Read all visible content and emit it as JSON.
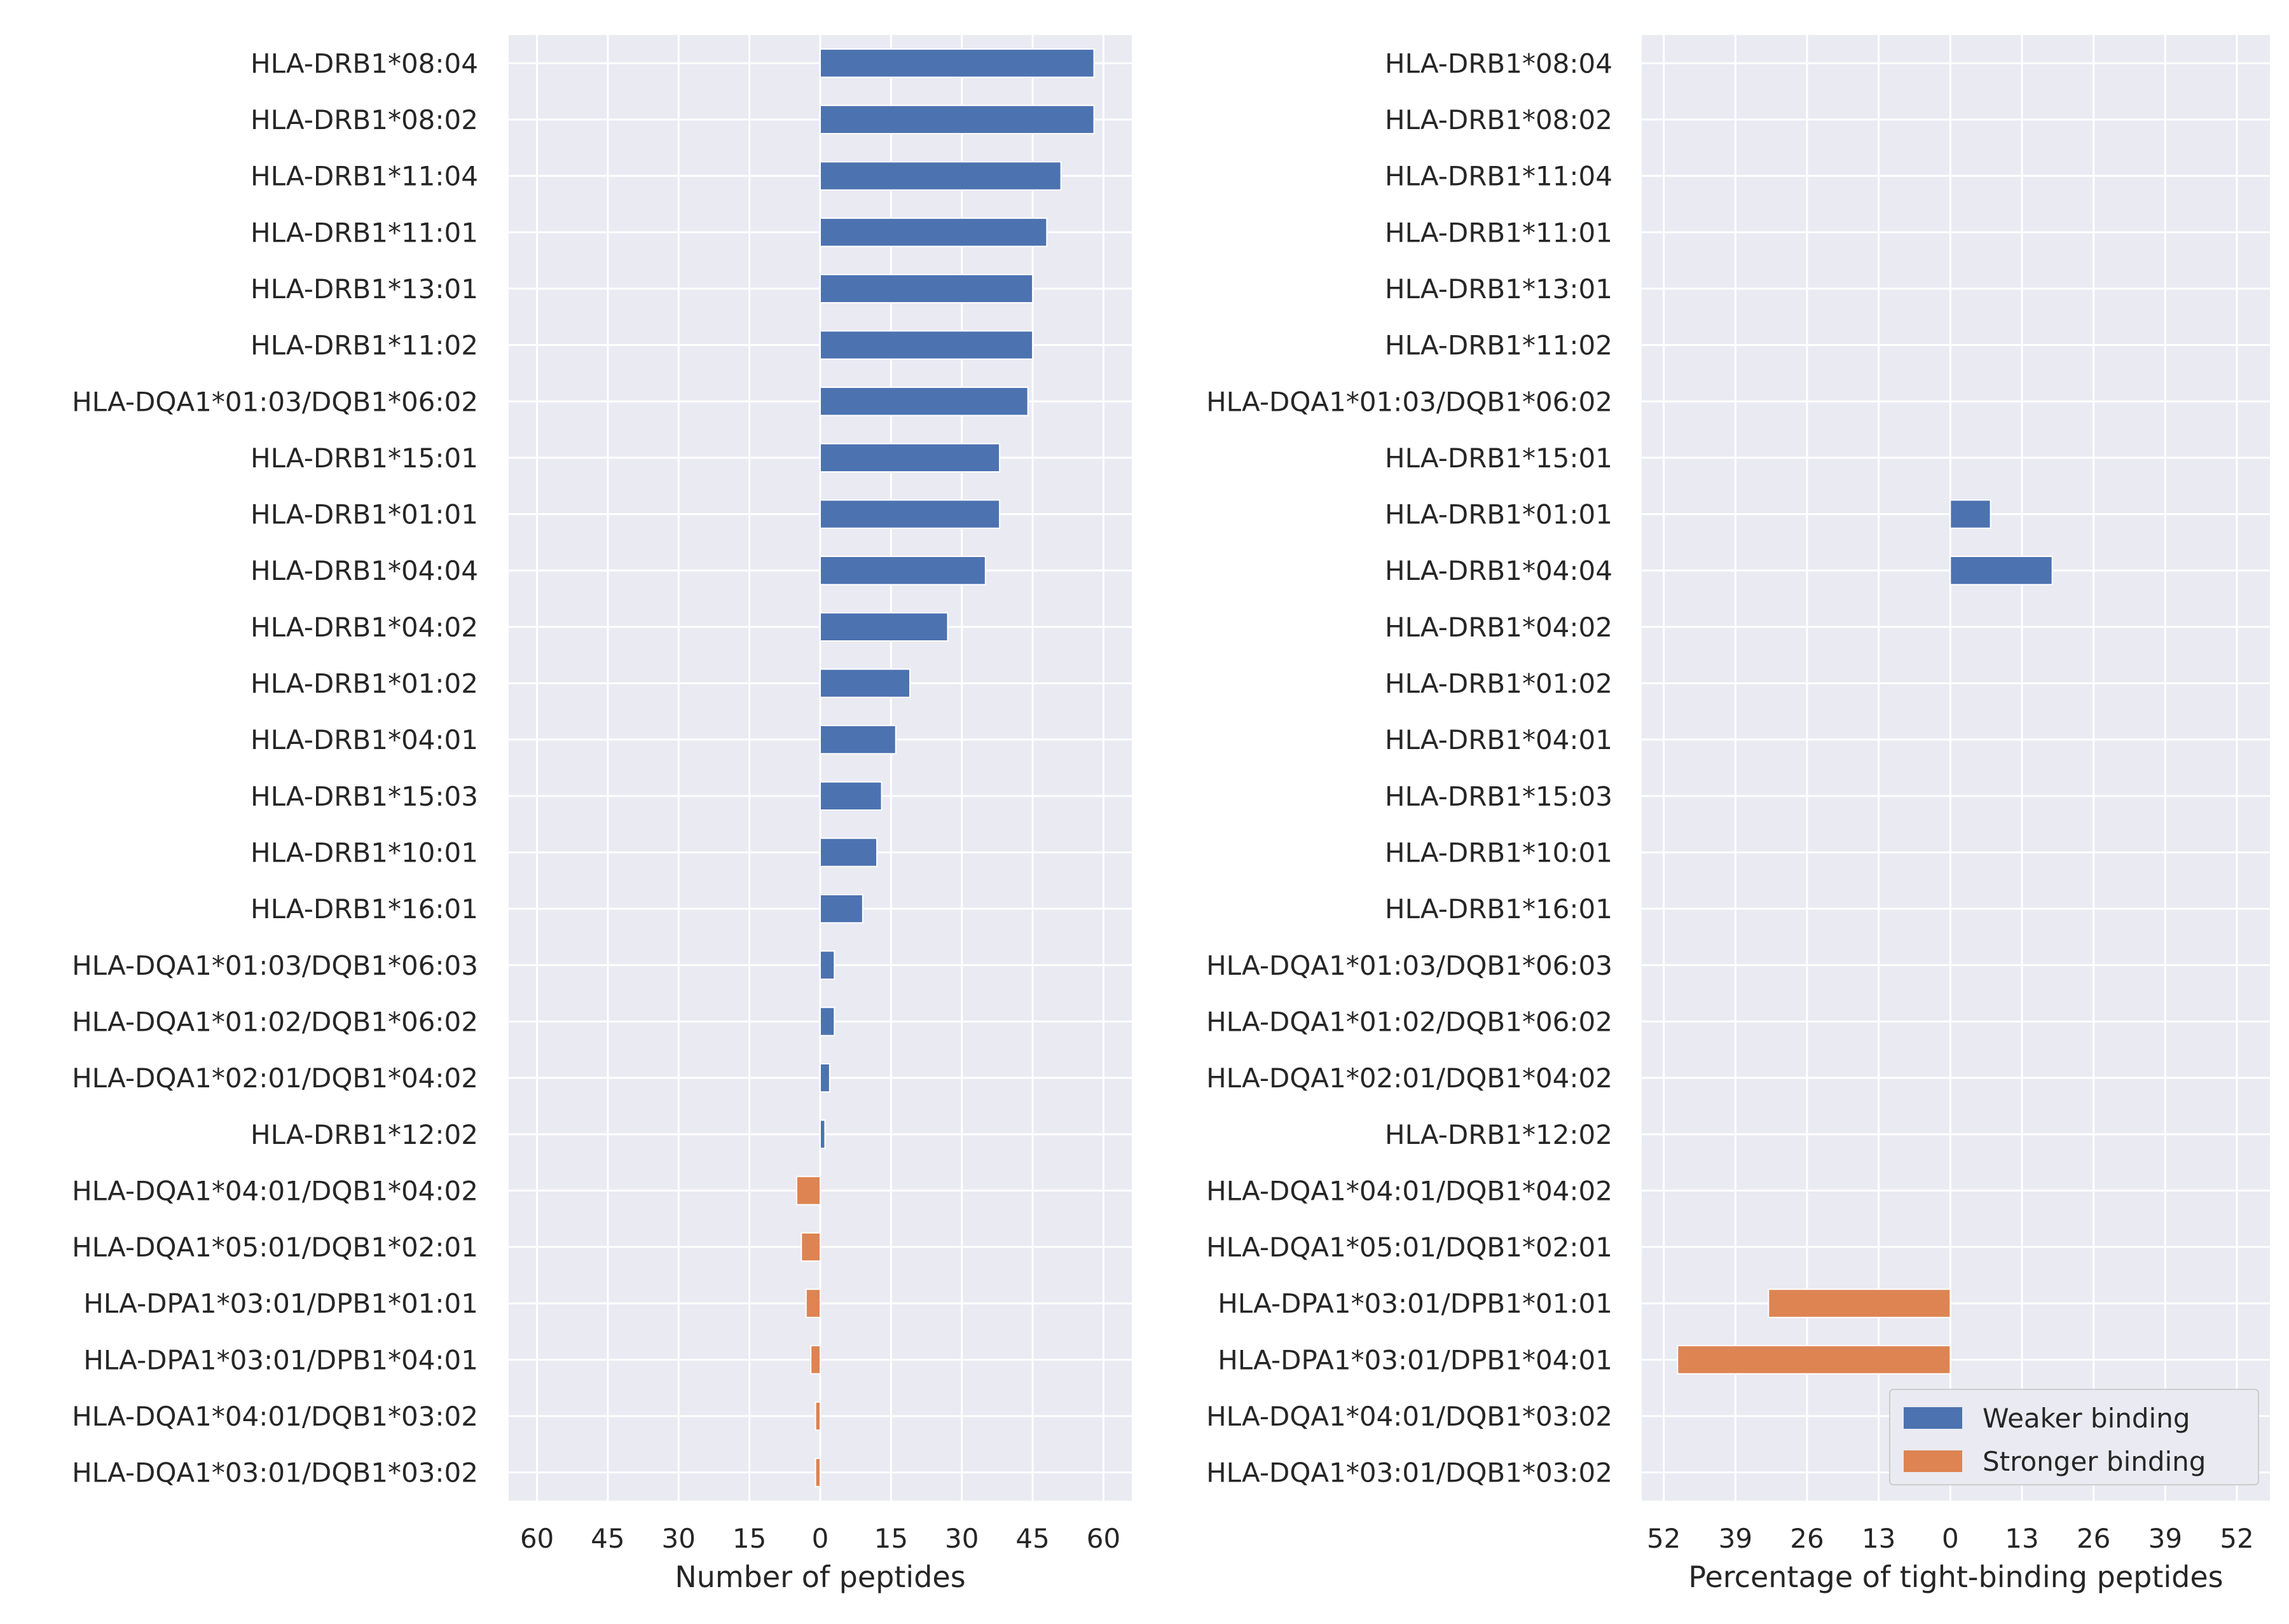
{
  "chart_data": [
    {
      "type": "bar",
      "orientation": "horizontal",
      "xlabel": "Number of peptides",
      "ylabel": "",
      "title": "",
      "xlim": [
        -66,
        66
      ],
      "xticks": [
        -60,
        -45,
        -30,
        -15,
        0,
        15,
        30,
        45,
        60
      ],
      "xtick_labels": [
        "60",
        "45",
        "30",
        "15",
        "0",
        "15",
        "30",
        "45",
        "60"
      ],
      "grid": true,
      "categories": [
        "HLA-DRB1*08:04",
        "HLA-DRB1*08:02",
        "HLA-DRB1*11:04",
        "HLA-DRB1*11:01",
        "HLA-DRB1*13:01",
        "HLA-DRB1*11:02",
        "HLA-DQA1*01:03/DQB1*06:02",
        "HLA-DRB1*15:01",
        "HLA-DRB1*01:01",
        "HLA-DRB1*04:04",
        "HLA-DRB1*04:02",
        "HLA-DRB1*01:02",
        "HLA-DRB1*04:01",
        "HLA-DRB1*15:03",
        "HLA-DRB1*10:01",
        "HLA-DRB1*16:01",
        "HLA-DQA1*01:03/DQB1*06:03",
        "HLA-DQA1*01:02/DQB1*06:02",
        "HLA-DQA1*02:01/DQB1*04:02",
        "HLA-DRB1*12:02",
        "HLA-DQA1*04:01/DQB1*04:02",
        "HLA-DQA1*05:01/DQB1*02:01",
        "HLA-DPA1*03:01/DPB1*01:01",
        "HLA-DPA1*03:01/DPB1*04:01",
        "HLA-DQA1*04:01/DQB1*03:02",
        "HLA-DQA1*03:01/DQB1*03:02"
      ],
      "series": [
        {
          "color": "#4c72b0",
          "values": [
            58,
            58,
            51,
            48,
            45,
            45,
            44,
            38,
            38,
            35,
            27,
            19,
            16,
            13,
            12,
            9,
            3,
            3,
            2,
            1,
            0,
            0,
            0,
            0,
            0,
            0
          ]
        },
        {
          "color": "#dd8452",
          "values": [
            0,
            0,
            0,
            0,
            0,
            0,
            0,
            0,
            0,
            0,
            0,
            0,
            0,
            0,
            0,
            0,
            0,
            0,
            0,
            0,
            -5,
            -4,
            -3,
            -2,
            -1,
            -1
          ]
        }
      ]
    },
    {
      "type": "bar",
      "orientation": "horizontal",
      "xlabel": "Percentage of tight-binding peptides",
      "ylabel": "",
      "title": "",
      "xlim": [
        -56,
        58
      ],
      "xticks": [
        -52,
        -39,
        -26,
        -13,
        0,
        13,
        26,
        39,
        52
      ],
      "xtick_labels": [
        "52",
        "39",
        "26",
        "13",
        "0",
        "13",
        "26",
        "39",
        "52"
      ],
      "grid": true,
      "legend_position": "bottom-right",
      "categories": [
        "HLA-DRB1*08:04",
        "HLA-DRB1*08:02",
        "HLA-DRB1*11:04",
        "HLA-DRB1*11:01",
        "HLA-DRB1*13:01",
        "HLA-DRB1*11:02",
        "HLA-DQA1*01:03/DQB1*06:02",
        "HLA-DRB1*15:01",
        "HLA-DRB1*01:01",
        "HLA-DRB1*04:04",
        "HLA-DRB1*04:02",
        "HLA-DRB1*01:02",
        "HLA-DRB1*04:01",
        "HLA-DRB1*15:03",
        "HLA-DRB1*10:01",
        "HLA-DRB1*16:01",
        "HLA-DQA1*01:03/DQB1*06:03",
        "HLA-DQA1*01:02/DQB1*06:02",
        "HLA-DQA1*02:01/DQB1*04:02",
        "HLA-DRB1*12:02",
        "HLA-DQA1*04:01/DQB1*04:02",
        "HLA-DQA1*05:01/DQB1*02:01",
        "HLA-DPA1*03:01/DPB1*01:01",
        "HLA-DPA1*03:01/DPB1*04:01",
        "HLA-DQA1*04:01/DQB1*03:02",
        "HLA-DQA1*03:01/DQB1*03:02"
      ],
      "series": [
        {
          "name": "Weaker binding",
          "color": "#4c72b0",
          "values": [
            0,
            0,
            0,
            0,
            0,
            0,
            0,
            0,
            7.3,
            18.5,
            0,
            0,
            0,
            0,
            0,
            0,
            0,
            0,
            0,
            0,
            0,
            0,
            0,
            0,
            0,
            0
          ]
        },
        {
          "name": "Stronger binding",
          "color": "#dd8452",
          "values": [
            0,
            0,
            0,
            0,
            0,
            0,
            0,
            0,
            0,
            0,
            0,
            0,
            0,
            0,
            0,
            0,
            0,
            0,
            0,
            0,
            0,
            0,
            -33,
            -49.5,
            0,
            0
          ]
        }
      ]
    }
  ]
}
